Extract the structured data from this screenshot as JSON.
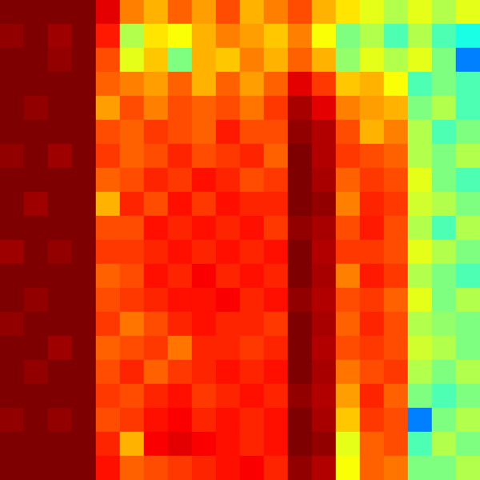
{
  "chart_data": {
    "type": "heatmap",
    "tick_labels": false,
    "zlim": [
      0,
      100
    ],
    "cells": [
      [
        100,
        100,
        100,
        100,
        90,
        75,
        70,
        78,
        72,
        80,
        70,
        75,
        80,
        70,
        65,
        60,
        55,
        60,
        55,
        60
      ],
      [
        98,
        100,
        97,
        100,
        85,
        55,
        65,
        62,
        70,
        75,
        72,
        68,
        75,
        62,
        50,
        55,
        45,
        55,
        45,
        40
      ],
      [
        100,
        100,
        98,
        100,
        80,
        60,
        68,
        50,
        70,
        68,
        75,
        70,
        78,
        70,
        52,
        60,
        55,
        60,
        50,
        25
      ],
      [
        100,
        100,
        100,
        100,
        78,
        75,
        72,
        78,
        70,
        78,
        72,
        78,
        90,
        82,
        68,
        70,
        62,
        45,
        50,
        45
      ],
      [
        100,
        98,
        100,
        100,
        72,
        80,
        75,
        80,
        78,
        80,
        76,
        82,
        96,
        90,
        75,
        72,
        70,
        50,
        55,
        45
      ],
      [
        100,
        100,
        100,
        100,
        80,
        78,
        82,
        80,
        78,
        85,
        80,
        80,
        98,
        95,
        80,
        70,
        75,
        55,
        45,
        50
      ],
      [
        98,
        100,
        97,
        100,
        82,
        78,
        80,
        84,
        80,
        82,
        84,
        78,
        100,
        95,
        82,
        80,
        78,
        55,
        50,
        55
      ],
      [
        100,
        100,
        100,
        100,
        78,
        80,
        84,
        82,
        86,
        84,
        80,
        82,
        100,
        96,
        78,
        82,
        80,
        60,
        50,
        45
      ],
      [
        100,
        97,
        100,
        100,
        70,
        84,
        80,
        86,
        82,
        86,
        84,
        84,
        100,
        98,
        75,
        84,
        82,
        58,
        55,
        50
      ],
      [
        100,
        100,
        100,
        100,
        80,
        80,
        86,
        84,
        86,
        84,
        86,
        82,
        98,
        96,
        80,
        85,
        80,
        55,
        45,
        55
      ],
      [
        97,
        100,
        98,
        100,
        82,
        82,
        84,
        86,
        84,
        86,
        84,
        86,
        100,
        95,
        82,
        82,
        80,
        60,
        55,
        50
      ],
      [
        100,
        100,
        100,
        100,
        78,
        80,
        86,
        84,
        88,
        84,
        86,
        84,
        100,
        96,
        75,
        85,
        82,
        55,
        50,
        45
      ],
      [
        100,
        98,
        100,
        100,
        80,
        82,
        84,
        86,
        86,
        88,
        84,
        86,
        98,
        95,
        80,
        82,
        78,
        60,
        50,
        55
      ],
      [
        98,
        100,
        100,
        100,
        82,
        76,
        80,
        84,
        86,
        84,
        84,
        82,
        100,
        96,
        78,
        84,
        80,
        55,
        52,
        50
      ],
      [
        100,
        100,
        97,
        100,
        78,
        80,
        82,
        76,
        84,
        84,
        82,
        84,
        100,
        95,
        80,
        82,
        80,
        58,
        55,
        50
      ],
      [
        100,
        98,
        100,
        100,
        80,
        84,
        78,
        82,
        84,
        86,
        84,
        86,
        100,
        96,
        76,
        80,
        82,
        55,
        50,
        55
      ],
      [
        100,
        100,
        100,
        100,
        82,
        80,
        84,
        86,
        82,
        84,
        86,
        84,
        98,
        95,
        72,
        84,
        78,
        50,
        45,
        50
      ],
      [
        98,
        100,
        98,
        100,
        80,
        82,
        86,
        88,
        84,
        86,
        84,
        86,
        100,
        96,
        68,
        82,
        80,
        25,
        50,
        55
      ],
      [
        100,
        100,
        100,
        100,
        84,
        70,
        88,
        90,
        88,
        86,
        84,
        86,
        100,
        98,
        60,
        78,
        80,
        45,
        55,
        50
      ],
      [
        100,
        100,
        100,
        100,
        86,
        78,
        80,
        82,
        84,
        86,
        88,
        84,
        98,
        95,
        62,
        78,
        76,
        50,
        50,
        55
      ]
    ]
  }
}
